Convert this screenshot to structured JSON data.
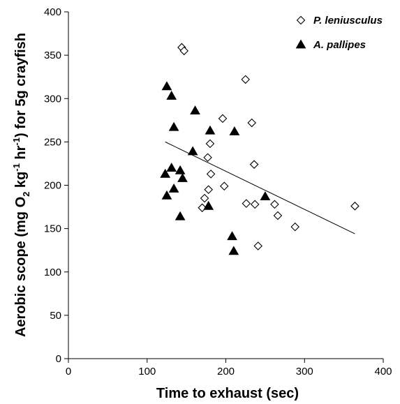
{
  "chart_data": {
    "type": "scatter",
    "xlabel": "Time to exhaust (sec)",
    "ylabel": "Aerobic scope (mg O2 kg-1 hr-1) for 5g crayfish",
    "ylabel_parts": {
      "a": "Aerobic scope (mg O",
      "b": "2",
      "c": " kg",
      "d": "-1",
      "e": " hr",
      "f": "-1",
      "g": ") for 5g crayfish"
    },
    "xlim": [
      0,
      400
    ],
    "ylim": [
      0,
      400
    ],
    "xticks": [
      "0",
      "100",
      "200",
      "300",
      "400"
    ],
    "yticks": [
      "0",
      "50",
      "100",
      "150",
      "200",
      "250",
      "300",
      "350",
      "400"
    ],
    "grid": false,
    "legend_position": "top-right",
    "series": [
      {
        "name": "P. leniusculus",
        "marker": "diamond-open",
        "color": "#000000",
        "points": [
          {
            "x": 144,
            "y": 359
          },
          {
            "x": 147,
            "y": 355
          },
          {
            "x": 225,
            "y": 322
          },
          {
            "x": 196,
            "y": 277
          },
          {
            "x": 233,
            "y": 272
          },
          {
            "x": 180,
            "y": 248
          },
          {
            "x": 177,
            "y": 232
          },
          {
            "x": 236,
            "y": 224
          },
          {
            "x": 181,
            "y": 213
          },
          {
            "x": 198,
            "y": 199
          },
          {
            "x": 178,
            "y": 195
          },
          {
            "x": 173,
            "y": 185
          },
          {
            "x": 170,
            "y": 174
          },
          {
            "x": 226,
            "y": 179
          },
          {
            "x": 237,
            "y": 178
          },
          {
            "x": 262,
            "y": 178
          },
          {
            "x": 266,
            "y": 165
          },
          {
            "x": 288,
            "y": 152
          },
          {
            "x": 241,
            "y": 130
          },
          {
            "x": 364,
            "y": 176
          }
        ]
      },
      {
        "name": "A. pallipes",
        "marker": "triangle-filled",
        "color": "#000000",
        "points": [
          {
            "x": 125,
            "y": 314
          },
          {
            "x": 131,
            "y": 303
          },
          {
            "x": 134,
            "y": 267
          },
          {
            "x": 161,
            "y": 286
          },
          {
            "x": 180,
            "y": 263
          },
          {
            "x": 211,
            "y": 262
          },
          {
            "x": 158,
            "y": 239
          },
          {
            "x": 131,
            "y": 220
          },
          {
            "x": 123,
            "y": 213
          },
          {
            "x": 142,
            "y": 217
          },
          {
            "x": 145,
            "y": 208
          },
          {
            "x": 134,
            "y": 196
          },
          {
            "x": 125,
            "y": 188
          },
          {
            "x": 178,
            "y": 176
          },
          {
            "x": 250,
            "y": 187
          },
          {
            "x": 142,
            "y": 164
          },
          {
            "x": 208,
            "y": 141
          },
          {
            "x": 210,
            "y": 124
          }
        ]
      }
    ],
    "trendline": {
      "x": [
        123,
        364
      ],
      "y": [
        250,
        144
      ]
    }
  }
}
